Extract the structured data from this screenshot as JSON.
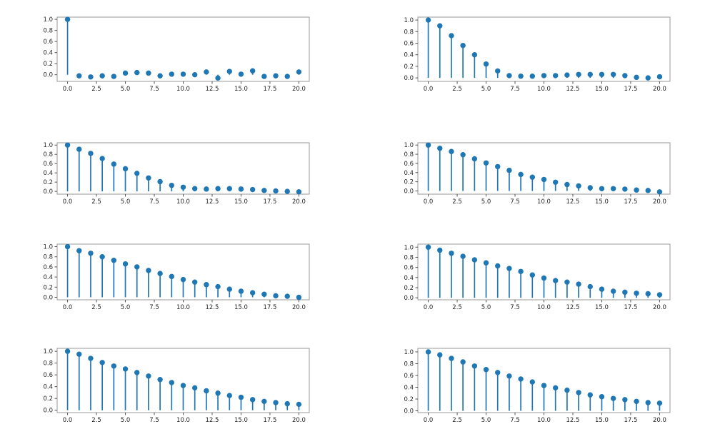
{
  "page": {
    "background": "#ffffff",
    "description_hint": "grid of 8 stem plots, lags 0-20, values 0-1"
  },
  "chart_config": {
    "stem_color": "#1f77b4",
    "marker_color": "#1f77b4",
    "axis_color": "#9a9a9a",
    "tick_color": "#555555",
    "tick_label_color": "#262626",
    "xlim": [
      -0.9,
      20.9
    ],
    "xtick_values": [
      0,
      2.5,
      5,
      7.5,
      10,
      12.5,
      15,
      17.5,
      20
    ],
    "xtick_labels": [
      "0.0",
      "2.5",
      "5.0",
      "7.5",
      "10.0",
      "12.5",
      "15.0",
      "17.5",
      "20.0"
    ],
    "ytick_values": [
      0,
      0.2,
      0.4,
      0.6,
      0.8,
      1.0
    ],
    "ytick_labels": [
      "0.0",
      "0.2",
      "0.4",
      "0.6",
      "0.8",
      "1.0"
    ],
    "grid": false,
    "legend": false
  },
  "chart_data": [
    {
      "id": "stem-plot-1",
      "type": "stem",
      "title": "",
      "xlabel": "",
      "ylabel": "",
      "ylim": [
        -0.12,
        1.04
      ],
      "x": [
        0,
        1,
        2,
        3,
        4,
        5,
        6,
        7,
        8,
        9,
        10,
        11,
        12,
        13,
        14,
        15,
        16,
        17,
        18,
        19,
        20
      ],
      "values": [
        1.0,
        -0.02,
        -0.04,
        -0.02,
        -0.03,
        0.03,
        0.04,
        0.03,
        -0.02,
        0.01,
        0.01,
        0.0,
        0.05,
        -0.06,
        0.06,
        0.01,
        0.07,
        -0.03,
        -0.02,
        -0.03,
        0.05
      ]
    },
    {
      "id": "stem-plot-2",
      "type": "stem",
      "title": "",
      "xlabel": "",
      "ylabel": "",
      "ylim": [
        -0.06,
        1.05
      ],
      "x": [
        0,
        1,
        2,
        3,
        4,
        5,
        6,
        7,
        8,
        9,
        10,
        11,
        12,
        13,
        14,
        15,
        16,
        17,
        18,
        19,
        20
      ],
      "values": [
        1.0,
        0.9,
        0.73,
        0.56,
        0.4,
        0.24,
        0.12,
        0.04,
        0.03,
        0.03,
        0.04,
        0.04,
        0.05,
        0.06,
        0.06,
        0.06,
        0.06,
        0.04,
        0.01,
        0.0,
        0.02
      ]
    },
    {
      "id": "stem-plot-3",
      "type": "stem",
      "title": "",
      "xlabel": "",
      "ylabel": "",
      "ylim": [
        -0.06,
        1.05
      ],
      "x": [
        0,
        1,
        2,
        3,
        4,
        5,
        6,
        7,
        8,
        9,
        10,
        11,
        12,
        13,
        14,
        15,
        16,
        17,
        18,
        19,
        20
      ],
      "values": [
        1.0,
        0.91,
        0.82,
        0.71,
        0.59,
        0.49,
        0.39,
        0.29,
        0.21,
        0.13,
        0.09,
        0.06,
        0.05,
        0.06,
        0.06,
        0.05,
        0.04,
        0.02,
        0.01,
        0.0,
        -0.01
      ]
    },
    {
      "id": "stem-plot-4",
      "type": "stem",
      "title": "",
      "xlabel": "",
      "ylabel": "",
      "ylim": [
        -0.07,
        1.05
      ],
      "x": [
        0,
        1,
        2,
        3,
        4,
        5,
        6,
        7,
        8,
        9,
        10,
        11,
        12,
        13,
        14,
        15,
        16,
        17,
        18,
        19,
        20
      ],
      "values": [
        1.0,
        0.93,
        0.86,
        0.79,
        0.7,
        0.61,
        0.53,
        0.45,
        0.36,
        0.3,
        0.25,
        0.19,
        0.14,
        0.11,
        0.07,
        0.05,
        0.05,
        0.04,
        0.02,
        0.01,
        -0.02
      ]
    },
    {
      "id": "stem-plot-5",
      "type": "stem",
      "title": "",
      "xlabel": "",
      "ylabel": "",
      "ylim": [
        -0.05,
        1.05
      ],
      "x": [
        0,
        1,
        2,
        3,
        4,
        5,
        6,
        7,
        8,
        9,
        10,
        11,
        12,
        13,
        14,
        15,
        16,
        17,
        18,
        19,
        20
      ],
      "values": [
        1.0,
        0.92,
        0.87,
        0.8,
        0.73,
        0.66,
        0.6,
        0.53,
        0.47,
        0.41,
        0.35,
        0.3,
        0.25,
        0.21,
        0.16,
        0.12,
        0.09,
        0.06,
        0.03,
        0.02,
        0.0
      ]
    },
    {
      "id": "stem-plot-6",
      "type": "stem",
      "title": "",
      "xlabel": "",
      "ylabel": "",
      "ylim": [
        -0.04,
        1.06
      ],
      "x": [
        0,
        1,
        2,
        3,
        4,
        5,
        6,
        7,
        8,
        9,
        10,
        11,
        12,
        13,
        14,
        15,
        16,
        17,
        18,
        19,
        20
      ],
      "values": [
        1.0,
        0.94,
        0.88,
        0.82,
        0.75,
        0.69,
        0.63,
        0.58,
        0.52,
        0.45,
        0.39,
        0.34,
        0.31,
        0.27,
        0.22,
        0.17,
        0.13,
        0.11,
        0.09,
        0.08,
        0.06
      ]
    },
    {
      "id": "stem-plot-7",
      "type": "stem",
      "title": "",
      "xlabel": "",
      "ylabel": "",
      "ylim": [
        -0.04,
        1.05
      ],
      "x": [
        0,
        1,
        2,
        3,
        4,
        5,
        6,
        7,
        8,
        9,
        10,
        11,
        12,
        13,
        14,
        15,
        16,
        17,
        18,
        19,
        20
      ],
      "values": [
        1.0,
        0.95,
        0.88,
        0.81,
        0.75,
        0.7,
        0.64,
        0.58,
        0.52,
        0.47,
        0.42,
        0.38,
        0.33,
        0.29,
        0.25,
        0.22,
        0.18,
        0.15,
        0.13,
        0.11,
        0.1
      ]
    },
    {
      "id": "stem-plot-8",
      "type": "stem",
      "title": "",
      "xlabel": "",
      "ylabel": "",
      "ylim": [
        -0.03,
        1.06
      ],
      "x": [
        0,
        1,
        2,
        3,
        4,
        5,
        6,
        7,
        8,
        9,
        10,
        11,
        12,
        13,
        14,
        15,
        16,
        17,
        18,
        19,
        20
      ],
      "values": [
        1.0,
        0.95,
        0.89,
        0.83,
        0.76,
        0.7,
        0.65,
        0.59,
        0.54,
        0.49,
        0.43,
        0.39,
        0.35,
        0.31,
        0.27,
        0.24,
        0.21,
        0.19,
        0.16,
        0.14,
        0.13
      ]
    }
  ]
}
